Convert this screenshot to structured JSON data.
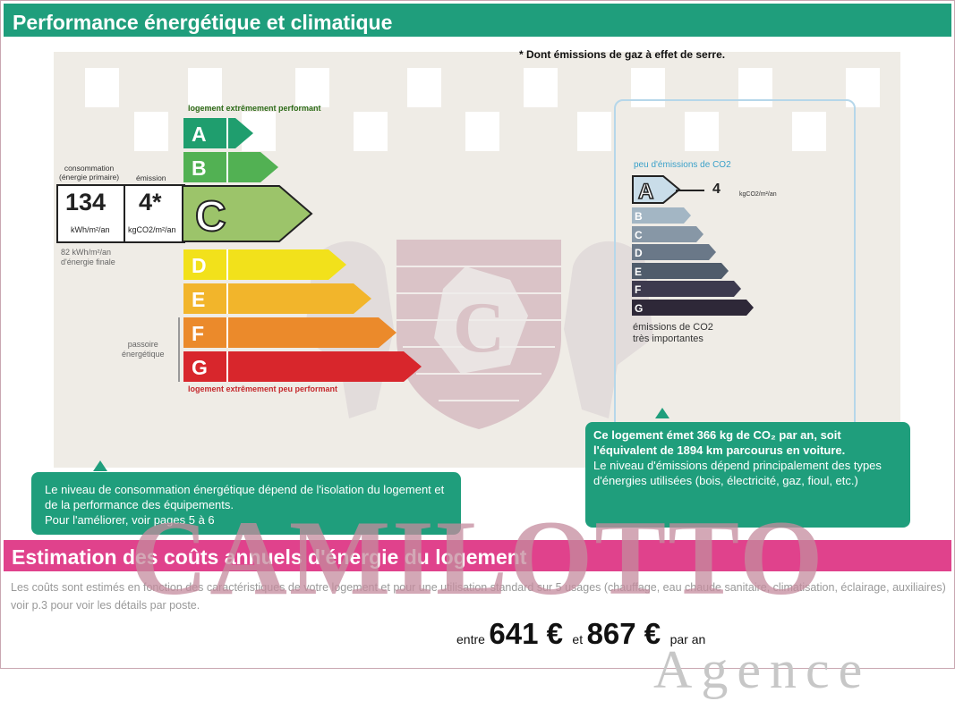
{
  "performance": {
    "title": "Performance énergétique et climatique",
    "footnote": "* Dont émissions de gaz à effet de serre."
  },
  "energy_scale": {
    "top_label": "logement extrêmement performant",
    "bottom_label": "logement extrêmement peu performant",
    "classes": [
      "A",
      "B",
      "C",
      "D",
      "E",
      "F",
      "G"
    ],
    "current_class": "C",
    "colors": [
      "#1f9e6e",
      "#52b153",
      "#9cc46a",
      "#f2e11b",
      "#f2b52b",
      "#eb8a2b",
      "#d8262c"
    ],
    "consumption_label": "consommation\n(énergie primaire)",
    "emission_label": "émission",
    "consumption_value": "134",
    "consumption_unit": "kWh/m²/an",
    "emission_value": "4*",
    "emission_unit": "kgCO2/m²/an",
    "final_energy_note": "82 kWh/m²/an\nd'énergie finale",
    "passoire_label": "passoire\nénergétique"
  },
  "co2_scale": {
    "top_label": "peu d'émissions de CO2",
    "bottom_label": "émissions de CO2\ntrès importantes",
    "classes": [
      "A",
      "B",
      "C",
      "D",
      "E",
      "F",
      "G"
    ],
    "current_class": "A",
    "value": "4",
    "unit": "kgCO2/m²/an",
    "colors": [
      "#c9dde9",
      "#a3b6c4",
      "#8797a6",
      "#6a7888",
      "#505c6b",
      "#3d3a4e",
      "#2e2838"
    ]
  },
  "callouts": {
    "energy_text": "Le niveau de consommation énergétique dépend de l'isolation du logement et de la performance des équipements.\nPour l'améliorer, voir pages 5 à 6",
    "co2_bold": "Ce logement émet 366  kg de CO₂ par an, soit l'équivalent de 1894 km parcourus en voiture.",
    "co2_text": "Le niveau d'émissions dépend principalement des types d'énergies utilisées (bois, électricité, gaz, fioul, etc.)"
  },
  "costs": {
    "title": "Estimation des coûts annuels d'énergie du logement",
    "note": "Les coûts sont estimés en fonction des caractéristiques de votre logement et pour une utilisation standard sur 5 usages (chauffage, eau chaude sanitaire, climatisation, éclairage, auxiliaires) voir p.3 pour voir les détails par poste.",
    "between": "entre",
    "low": "641 €",
    "and": "et",
    "high": "867 €",
    "per_year": "par an"
  },
  "watermark": {
    "text": "CAMILOTTO",
    "sub": "Agence"
  }
}
